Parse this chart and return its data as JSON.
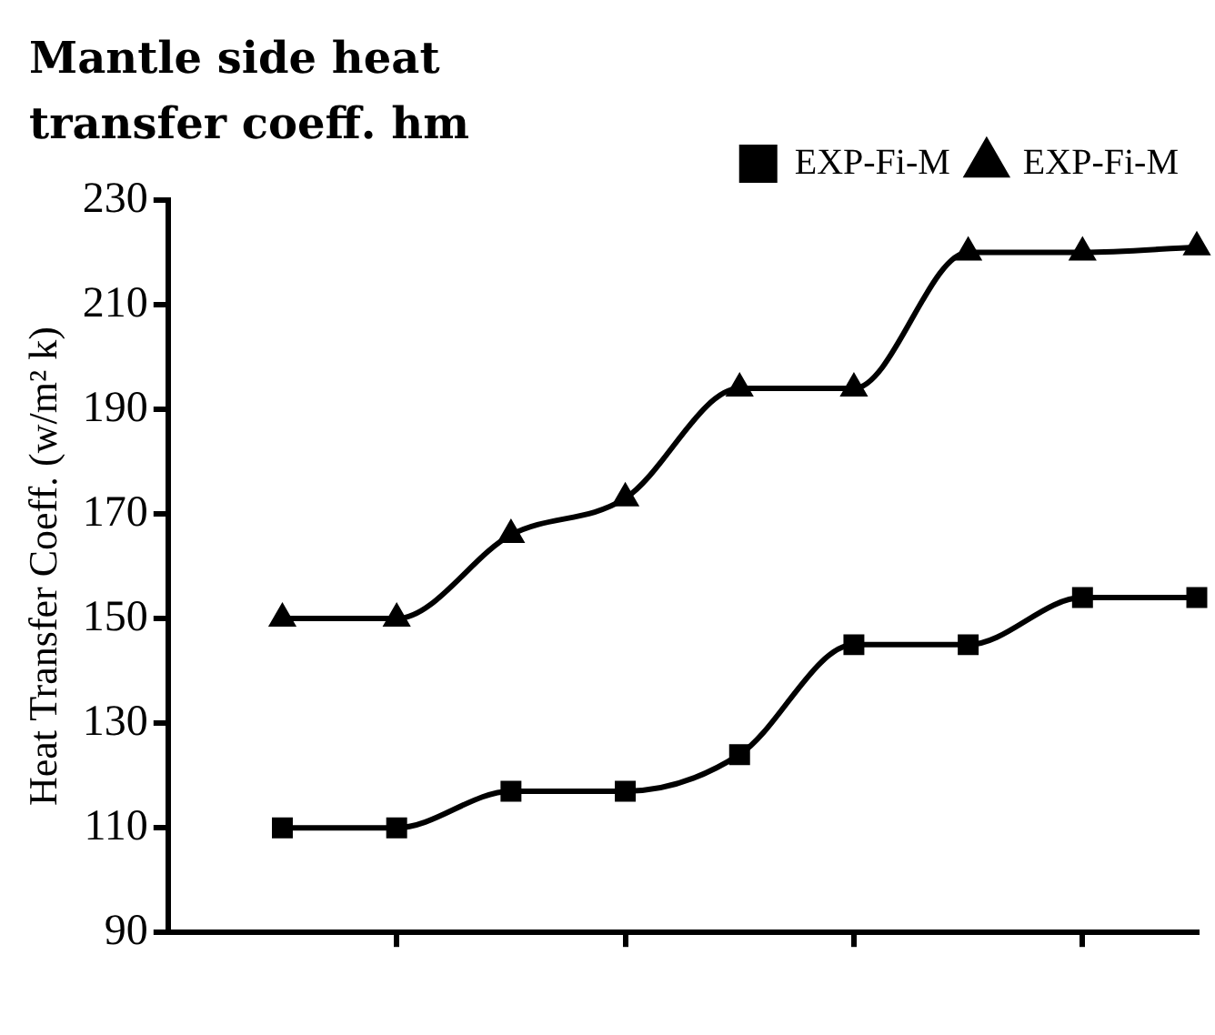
{
  "chart_data": {
    "type": "line",
    "title": "Mantle side heat transfer coeff. hm",
    "ylabel": "Heat Transfer Coeff. (w/m² k)",
    "categories": [
      null,
      null,
      null,
      null,
      null,
      null,
      null,
      null,
      null
    ],
    "series": [
      {
        "name": "EXP-Fi-M",
        "color": "#000000",
        "marker": "square",
        "values": [
          110,
          110,
          117,
          117,
          124,
          145,
          145,
          154,
          154
        ]
      },
      {
        "name": "EXP-Fi-M",
        "color": "#000000",
        "marker": "triangle",
        "values": [
          150,
          150,
          166,
          173,
          194,
          194,
          220,
          220,
          221
        ]
      }
    ],
    "ylim": [
      90,
      230
    ],
    "yticks": [
      90,
      110,
      130,
      150,
      170,
      190,
      210,
      230
    ],
    "grid": false,
    "legend": "top right",
    "line_style": "solid"
  }
}
